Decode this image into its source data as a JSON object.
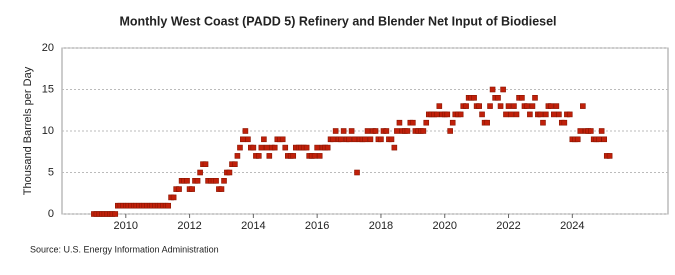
{
  "chart_data": {
    "type": "scatter",
    "title": "Monthly West Coast (PADD 5) Refinery and Blender Net Input of Biodiesel",
    "y_label": "Thousand Barrels per Day",
    "source": "Source: U.S. Energy Information Administration",
    "color": "#c0200a",
    "grid": true,
    "xlim": [
      2008,
      2027
    ],
    "xticks": [
      2010,
      2012,
      2014,
      2016,
      2018,
      2020,
      2022,
      2024
    ],
    "ylim": [
      0,
      20
    ],
    "yticks": [
      0,
      5,
      10,
      15,
      20
    ],
    "x": [
      2009,
      2009.08,
      2009.17,
      2009.25,
      2009.33,
      2009.42,
      2009.5,
      2009.58,
      2009.67,
      2009.75,
      2009.83,
      2009.92,
      2010,
      2010.08,
      2010.17,
      2010.25,
      2010.33,
      2010.42,
      2010.5,
      2010.58,
      2010.67,
      2010.75,
      2010.83,
      2010.92,
      2011,
      2011.08,
      2011.17,
      2011.25,
      2011.33,
      2011.42,
      2011.5,
      2011.58,
      2011.67,
      2011.75,
      2011.83,
      2011.92,
      2012,
      2012.08,
      2012.17,
      2012.25,
      2012.33,
      2012.42,
      2012.5,
      2012.58,
      2012.67,
      2012.75,
      2012.83,
      2012.92,
      2013,
      2013.08,
      2013.17,
      2013.25,
      2013.33,
      2013.42,
      2013.5,
      2013.58,
      2013.67,
      2013.75,
      2013.83,
      2013.92,
      2014,
      2014.08,
      2014.17,
      2014.25,
      2014.33,
      2014.42,
      2014.5,
      2014.58,
      2014.67,
      2014.75,
      2014.83,
      2014.92,
      2015,
      2015.08,
      2015.17,
      2015.25,
      2015.33,
      2015.42,
      2015.5,
      2015.58,
      2015.67,
      2015.75,
      2015.83,
      2015.92,
      2016,
      2016.08,
      2016.17,
      2016.25,
      2016.33,
      2016.42,
      2016.5,
      2016.58,
      2016.67,
      2016.75,
      2016.83,
      2016.92,
      2017,
      2017.08,
      2017.17,
      2017.25,
      2017.33,
      2017.42,
      2017.5,
      2017.58,
      2017.67,
      2017.75,
      2017.83,
      2017.92,
      2018,
      2018.08,
      2018.17,
      2018.25,
      2018.33,
      2018.42,
      2018.5,
      2018.58,
      2018.67,
      2018.75,
      2018.83,
      2018.92,
      2019,
      2019.08,
      2019.17,
      2019.25,
      2019.33,
      2019.42,
      2019.5,
      2019.58,
      2019.67,
      2019.75,
      2019.83,
      2019.92,
      2020,
      2020.08,
      2020.17,
      2020.25,
      2020.33,
      2020.42,
      2020.5,
      2020.58,
      2020.67,
      2020.75,
      2020.83,
      2020.92,
      2021,
      2021.08,
      2021.17,
      2021.25,
      2021.33,
      2021.42,
      2021.5,
      2021.58,
      2021.67,
      2021.75,
      2021.83,
      2021.92,
      2022,
      2022.08,
      2022.17,
      2022.25,
      2022.33,
      2022.42,
      2022.5,
      2022.58,
      2022.67,
      2022.75,
      2022.83,
      2022.92,
      2023,
      2023.08,
      2023.17,
      2023.25,
      2023.33,
      2023.42,
      2023.5,
      2023.58,
      2023.67,
      2023.75,
      2023.83,
      2023.92,
      2024,
      2024.08,
      2024.17,
      2024.25,
      2024.33,
      2024.42,
      2024.5,
      2024.58,
      2024.67,
      2024.75,
      2024.83,
      2024.92,
      2025,
      2025.08,
      2025.17
    ],
    "values": [
      0,
      0,
      0,
      0,
      0,
      0,
      0,
      0,
      0,
      1,
      1,
      1,
      1,
      1,
      1,
      1,
      1,
      1,
      1,
      1,
      1,
      1,
      1,
      1,
      1,
      1,
      1,
      1,
      1,
      2,
      2,
      3,
      3,
      4,
      4,
      4,
      3,
      3,
      4,
      4,
      5,
      6,
      6,
      4,
      4,
      4,
      4,
      3,
      3,
      4,
      5,
      5,
      6,
      6,
      7,
      8,
      9,
      10,
      9,
      8,
      8,
      7,
      7,
      8,
      9,
      8,
      7,
      8,
      8,
      9,
      9,
      9,
      8,
      7,
      7,
      7,
      8,
      8,
      8,
      8,
      8,
      7,
      7,
      7,
      8,
      7,
      8,
      8,
      8,
      9,
      9,
      10,
      9,
      9,
      10,
      9,
      9,
      10,
      9,
      5,
      9,
      9,
      9,
      10,
      9,
      10,
      10,
      9,
      9,
      10,
      10,
      9,
      9,
      8,
      10,
      11,
      10,
      10,
      10,
      11,
      11,
      10,
      10,
      10,
      10,
      11,
      12,
      12,
      12,
      12,
      13,
      12,
      12,
      12,
      10,
      11,
      12,
      12,
      12,
      13,
      13,
      14,
      14,
      14,
      13,
      13,
      12,
      11,
      11,
      13,
      15,
      14,
      14,
      13,
      15,
      12,
      13,
      12,
      13,
      12,
      14,
      14,
      13,
      13,
      12,
      13,
      14,
      12,
      12,
      11,
      12,
      13,
      13,
      12,
      13,
      12,
      11,
      11,
      12,
      12,
      9,
      9,
      9,
      10,
      13,
      10,
      10,
      10,
      9,
      9,
      9,
      10,
      9,
      7,
      7
    ]
  }
}
